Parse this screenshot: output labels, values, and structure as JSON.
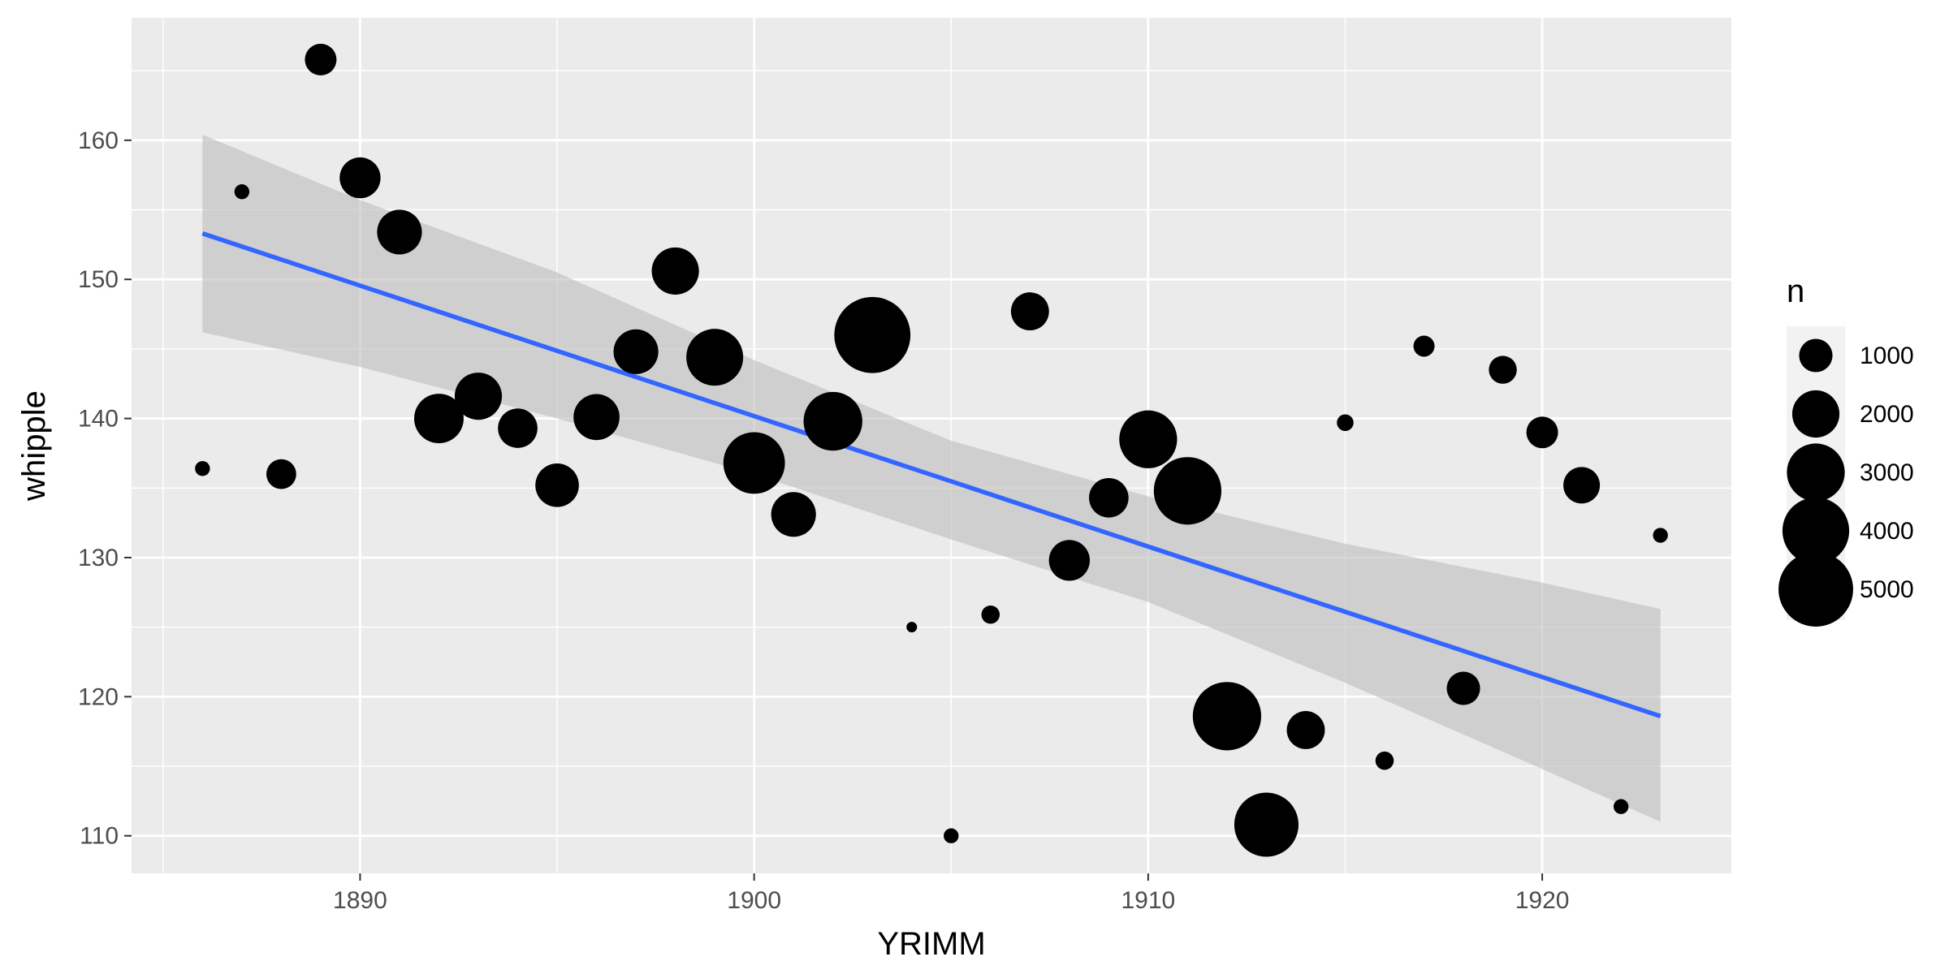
{
  "chart_data": {
    "type": "scatter",
    "xlabel": "YRIMM",
    "ylabel": "whipple",
    "xlim": [
      1884.2,
      1924.8
    ],
    "ylim": [
      107.3,
      168.8
    ],
    "x_ticks": [
      1890,
      1900,
      1910,
      1920
    ],
    "y_ticks": [
      110,
      120,
      130,
      140,
      150,
      160
    ],
    "grid": true,
    "legend_position": "right",
    "legend": {
      "title": "n",
      "entries": [
        {
          "label": "1000",
          "value": 1000
        },
        {
          "label": "2000",
          "value": 2000
        },
        {
          "label": "3000",
          "value": 3000
        },
        {
          "label": "4000",
          "value": 4000
        },
        {
          "label": "5000",
          "value": 5000
        }
      ]
    },
    "points": [
      {
        "x": 1886,
        "y": 136.4,
        "n": 200
      },
      {
        "x": 1887,
        "y": 156.3,
        "n": 200
      },
      {
        "x": 1888,
        "y": 136.0,
        "n": 800
      },
      {
        "x": 1889,
        "y": 165.8,
        "n": 900
      },
      {
        "x": 1890,
        "y": 157.3,
        "n": 1500
      },
      {
        "x": 1891,
        "y": 153.4,
        "n": 1800
      },
      {
        "x": 1892,
        "y": 140.0,
        "n": 2200
      },
      {
        "x": 1893,
        "y": 141.6,
        "n": 2000
      },
      {
        "x": 1894,
        "y": 139.3,
        "n": 1400
      },
      {
        "x": 1895,
        "y": 135.2,
        "n": 1700
      },
      {
        "x": 1896,
        "y": 140.1,
        "n": 1900
      },
      {
        "x": 1897,
        "y": 144.8,
        "n": 1800
      },
      {
        "x": 1898,
        "y": 150.6,
        "n": 2000
      },
      {
        "x": 1899,
        "y": 144.4,
        "n": 2900
      },
      {
        "x": 1900,
        "y": 136.8,
        "n": 3400
      },
      {
        "x": 1901,
        "y": 133.1,
        "n": 1800
      },
      {
        "x": 1902,
        "y": 139.8,
        "n": 3100
      },
      {
        "x": 1903,
        "y": 146.0,
        "n": 5200
      },
      {
        "x": 1904,
        "y": 125.0,
        "n": 100
      },
      {
        "x": 1905,
        "y": 110.0,
        "n": 200
      },
      {
        "x": 1906,
        "y": 125.9,
        "n": 300
      },
      {
        "x": 1907,
        "y": 147.7,
        "n": 1300
      },
      {
        "x": 1908,
        "y": 129.8,
        "n": 1500
      },
      {
        "x": 1909,
        "y": 134.3,
        "n": 1400
      },
      {
        "x": 1910,
        "y": 138.5,
        "n": 3000
      },
      {
        "x": 1911,
        "y": 134.8,
        "n": 4100
      },
      {
        "x": 1912,
        "y": 118.6,
        "n": 4200
      },
      {
        "x": 1913,
        "y": 110.8,
        "n": 3700
      },
      {
        "x": 1914,
        "y": 117.6,
        "n": 1300
      },
      {
        "x": 1915,
        "y": 139.7,
        "n": 250
      },
      {
        "x": 1916,
        "y": 115.4,
        "n": 300
      },
      {
        "x": 1917,
        "y": 145.2,
        "n": 400
      },
      {
        "x": 1918,
        "y": 120.6,
        "n": 1000
      },
      {
        "x": 1919,
        "y": 143.5,
        "n": 700
      },
      {
        "x": 1920,
        "y": 139.0,
        "n": 900
      },
      {
        "x": 1921,
        "y": 135.2,
        "n": 1200
      },
      {
        "x": 1922,
        "y": 112.1,
        "n": 200
      },
      {
        "x": 1923,
        "y": 131.6,
        "n": 200
      }
    ],
    "fit": {
      "method": "linear regression with 95% confidence band",
      "x_range": [
        1886,
        1923
      ],
      "line": [
        [
          1886,
          153.3
        ],
        [
          1923,
          118.6
        ]
      ],
      "band_upper": [
        [
          1886,
          160.4
        ],
        [
          1890,
          155.7
        ],
        [
          1895,
          150.5
        ],
        [
          1900,
          144.2
        ],
        [
          1905,
          138.4
        ],
        [
          1910,
          134.4
        ],
        [
          1915,
          131.0
        ],
        [
          1920,
          128.2
        ],
        [
          1923,
          126.3
        ]
      ],
      "band_lower": [
        [
          1886,
          146.2
        ],
        [
          1890,
          143.7
        ],
        [
          1895,
          140.0
        ],
        [
          1900,
          136.0
        ],
        [
          1905,
          131.3
        ],
        [
          1910,
          126.8
        ],
        [
          1915,
          121.0
        ],
        [
          1920,
          114.8
        ],
        [
          1923,
          111.0
        ]
      ]
    },
    "colors": {
      "panel": "#ebebeb",
      "grid_major": "#ffffff",
      "points": "#000000",
      "fit_line": "#3366ff",
      "band": "#bdbdbd",
      "legend_key_bg": "#f2f2f2"
    }
  }
}
